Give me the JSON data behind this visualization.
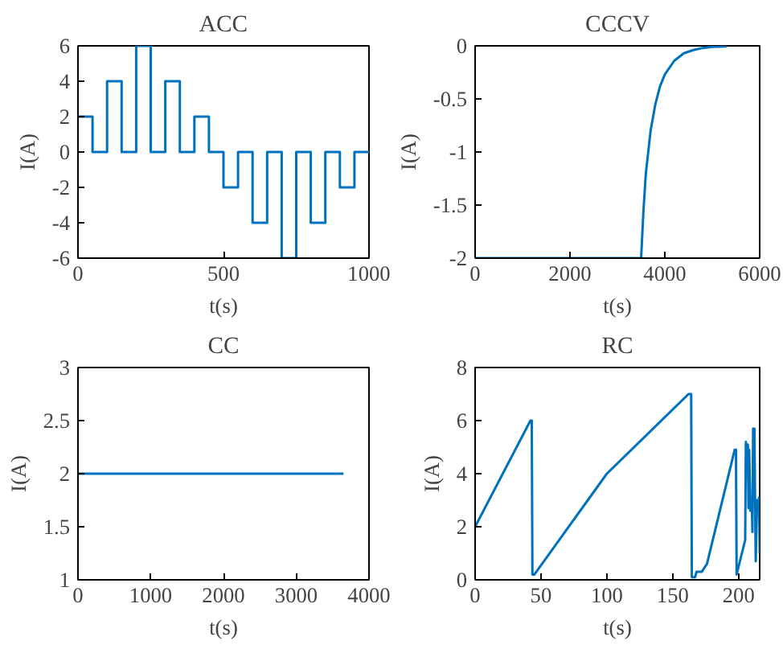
{
  "chart_data": [
    {
      "type": "step",
      "title": "ACC",
      "xlabel": "t(s)",
      "ylabel": "I(A)",
      "x": [
        0,
        50,
        100,
        150,
        200,
        250,
        300,
        350,
        400,
        450,
        500,
        550,
        600,
        650,
        700,
        750,
        800,
        850,
        900,
        950,
        1000
      ],
      "series": [
        {
          "color": "#0072bd",
          "values": [
            2,
            0,
            4,
            0,
            6,
            0,
            4,
            0,
            2,
            0,
            -2,
            0,
            -4,
            0,
            -6,
            0,
            -4,
            0,
            -2,
            0,
            0
          ]
        }
      ],
      "xlim": [
        0,
        1000
      ],
      "xticks": [
        0,
        500,
        1000
      ],
      "ylim": [
        -6,
        6
      ],
      "yticks": [
        -6,
        -4,
        -2,
        0,
        2,
        4,
        6
      ],
      "grid": false
    },
    {
      "type": "line",
      "title": "CCCV",
      "xlabel": "t(s)",
      "ylabel": "I(A)",
      "x": [
        0,
        3500,
        3550,
        3600,
        3700,
        3800,
        3900,
        4000,
        4200,
        4400,
        4600,
        4800,
        5000,
        5300
      ],
      "series": [
        {
          "color": "#0072bd",
          "values": [
            -2,
            -2,
            -1.55,
            -1.2,
            -0.8,
            -0.55,
            -0.38,
            -0.27,
            -0.14,
            -0.07,
            -0.04,
            -0.02,
            -0.01,
            -0.005
          ]
        }
      ],
      "xlim": [
        0,
        6000
      ],
      "xticks": [
        0,
        2000,
        4000,
        6000
      ],
      "ylim": [
        -2,
        0
      ],
      "yticks": [
        -2,
        -1.5,
        -1,
        -0.5,
        0
      ],
      "grid": false
    },
    {
      "type": "line",
      "title": "CC",
      "xlabel": "t(s)",
      "ylabel": "I(A)",
      "x": [
        0,
        3650
      ],
      "series": [
        {
          "color": "#0072bd",
          "values": [
            2,
            2
          ]
        }
      ],
      "xlim": [
        0,
        4000
      ],
      "xticks": [
        0,
        1000,
        2000,
        3000,
        4000
      ],
      "ylim": [
        1,
        3
      ],
      "yticks": [
        1,
        1.5,
        2,
        2.5,
        3
      ],
      "grid": false
    },
    {
      "type": "line",
      "title": "RC",
      "xlabel": "t(s)",
      "ylabel": "I(A)",
      "x": [
        0,
        42,
        43,
        43.5,
        45,
        100,
        162,
        164,
        164.5,
        167,
        168,
        172,
        176,
        197,
        198,
        198.5,
        200,
        205,
        205.5,
        206.5,
        207,
        207.5,
        208,
        209,
        210,
        210.5,
        211,
        212,
        212.5,
        213,
        214,
        215,
        215.5,
        216
      ],
      "series": [
        {
          "color": "#0072bd",
          "values": [
            2,
            6,
            6,
            0.2,
            0.2,
            4,
            7,
            7,
            0.1,
            0.1,
            0.3,
            0.3,
            0.6,
            4.9,
            4.9,
            0.2,
            0.5,
            1.5,
            5.2,
            4,
            5.1,
            2.7,
            4.9,
            2.6,
            2.9,
            1.8,
            5.7,
            5.7,
            3,
            0.7,
            3,
            2.9,
            3.1,
            1
          ]
        }
      ],
      "xlim": [
        0,
        216
      ],
      "xticks": [
        0,
        50,
        100,
        150,
        200
      ],
      "ylim": [
        0,
        8
      ],
      "yticks": [
        0,
        2,
        4,
        6,
        8
      ],
      "grid": false
    }
  ]
}
